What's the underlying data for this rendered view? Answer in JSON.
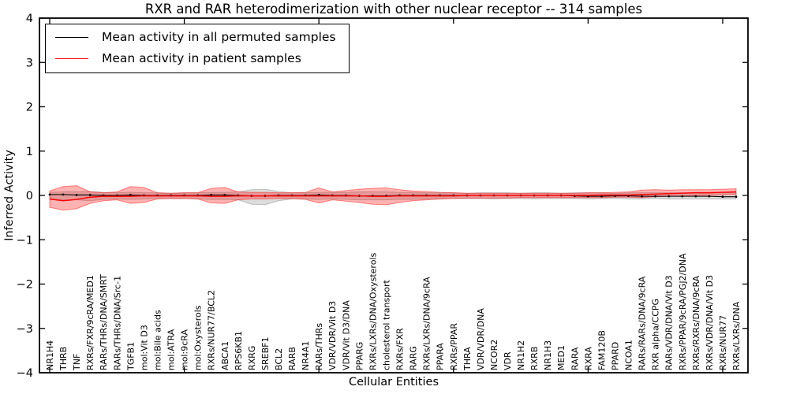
{
  "chart_data": {
    "type": "line",
    "title": "RXR and RAR heterodimerization with other nuclear receptor -- 314 samples",
    "xlabel": "Cellular Entities",
    "ylabel": "Inferred Activity",
    "ylim": [
      -4,
      4
    ],
    "yticks": [
      -4,
      -3,
      -2,
      -1,
      0,
      1,
      2,
      3,
      4
    ],
    "xtick_marks_every": 10,
    "grid": false,
    "legend_position": "upper left",
    "categories": [
      "NR1H4",
      "THRB",
      "TNF",
      "RXRs/FXR/9cRA/MED1",
      "RARs/THRs/DNA/SMRT",
      "RARs/THRs/DNA/Src-1",
      "TGFB1",
      "mol:Vit D3",
      "mol:Bile acids",
      "mol:ATRA",
      "mol:9cRA",
      "mol:Oxysterols",
      "RXRs/NUR77/BCL2",
      "ABCA1",
      "RPS6KB1",
      "RXRG",
      "SREBF1",
      "BCL2",
      "RARB",
      "NR4A1",
      "RARs/THRs",
      "VDR/VDR/Vit D3",
      "VDR/Vit D3/DNA",
      "PPARG",
      "RXRs/LXRs/DNA/Oxysterols",
      "cholesterol transport",
      "RXRs/FXR",
      "RARG",
      "RXRs/LXRs/DNA/9cRA",
      "PPARA",
      "RXRs/PPAR",
      "THRA",
      "VDR/VDR/DNA",
      "NCOR2",
      "VDR",
      "NR1H2",
      "RXRB",
      "NR1H3",
      "MED1",
      "RARA",
      "RXRA",
      "FAM120B",
      "PPARD",
      "NCOA1",
      "RARs/RARs/DNA/9cRA",
      "RXR alpha/CCPG",
      "RARs/VDR/DNA/Vit D3",
      "RXRs/PPAR/9cRA/PGJ2/DNA",
      "RXRs/RXRs/DNA/9cRA",
      "RXRs/VDR/DNA/Vit D3",
      "RXRs/NUR77",
      "RXRs/LXRs/DNA"
    ],
    "series": [
      {
        "name": "Mean activity in all permuted samples",
        "color": "#000000",
        "style": "solid with dot markers",
        "values": [
          0.02,
          0.02,
          0.01,
          0.01,
          0,
          0,
          0.01,
          0,
          0,
          0,
          0,
          0,
          0.01,
          0.01,
          0,
          -0.01,
          -0.01,
          0,
          0,
          0,
          0.01,
          0,
          0,
          -0.01,
          -0.01,
          -0.01,
          0,
          0,
          0,
          0,
          0,
          0,
          0,
          0,
          0,
          0,
          0,
          0,
          0,
          -0.01,
          -0.02,
          -0.02,
          -0.01,
          -0.01,
          -0.02,
          -0.02,
          -0.02,
          -0.02,
          -0.02,
          -0.02,
          -0.03,
          -0.03
        ]
      },
      {
        "name": "Mean activity in patient samples",
        "color": "#ff0000",
        "style": "solid",
        "values": [
          -0.08,
          -0.12,
          -0.09,
          -0.04,
          -0.02,
          -0.02,
          -0.02,
          -0.01,
          -0.01,
          -0.01,
          -0.01,
          -0.01,
          -0.02,
          -0.02,
          -0.01,
          -0.01,
          -0.01,
          -0.01,
          -0.01,
          -0.01,
          -0.01,
          -0.01,
          -0.01,
          -0.01,
          -0.02,
          -0.02,
          -0.01,
          -0.01,
          -0.01,
          -0.01,
          -0.01,
          0,
          0,
          0,
          0,
          0,
          0,
          0,
          0,
          0,
          0,
          0.01,
          0.01,
          0.01,
          0.02,
          0.03,
          0.04,
          0.05,
          0.06,
          0.06,
          0.07,
          0.08
        ]
      }
    ],
    "bands": [
      {
        "name": "permuted samples range",
        "color": "#808080",
        "alpha": 0.28,
        "upper": [
          0.07,
          0.08,
          0.08,
          0.09,
          0.07,
          0.06,
          0.07,
          0.06,
          0.06,
          0.05,
          0.06,
          0.06,
          0.07,
          0.07,
          0.08,
          0.13,
          0.14,
          0.09,
          0.06,
          0.06,
          0.07,
          0.07,
          0.07,
          0.08,
          0.08,
          0.08,
          0.07,
          0.07,
          0.06,
          0.06,
          0.06,
          0.05,
          0.06,
          0.06,
          0.06,
          0.05,
          0.06,
          0.06,
          0.05,
          0.06,
          0.06,
          0.06,
          0.05,
          0.06,
          0.06,
          0.06,
          0.06,
          0.06,
          0.06,
          0.06,
          0.06,
          0.06
        ],
        "lower": [
          -0.09,
          -0.1,
          -0.1,
          -0.12,
          -0.09,
          -0.08,
          -0.09,
          -0.08,
          -0.07,
          -0.07,
          -0.07,
          -0.08,
          -0.09,
          -0.09,
          -0.1,
          -0.2,
          -0.21,
          -0.12,
          -0.08,
          -0.08,
          -0.09,
          -0.08,
          -0.09,
          -0.1,
          -0.1,
          -0.1,
          -0.09,
          -0.09,
          -0.08,
          -0.08,
          -0.07,
          -0.07,
          -0.07,
          -0.08,
          -0.07,
          -0.07,
          -0.08,
          -0.07,
          -0.07,
          -0.07,
          -0.08,
          -0.07,
          -0.07,
          -0.08,
          -0.08,
          -0.07,
          -0.08,
          -0.08,
          -0.08,
          -0.08,
          -0.08,
          -0.08
        ]
      },
      {
        "name": "patient samples range",
        "color": "#ff0000",
        "alpha": 0.3,
        "upper": [
          0.1,
          0.2,
          0.22,
          0.08,
          0.06,
          0.08,
          0.2,
          0.18,
          0.06,
          0.05,
          0.06,
          0.06,
          0.16,
          0.18,
          0.08,
          0.07,
          0.07,
          0.06,
          0.06,
          0.07,
          0.17,
          0.08,
          0.11,
          0.14,
          0.16,
          0.17,
          0.13,
          0.1,
          0.09,
          0.07,
          0.06,
          0.05,
          0.05,
          0.05,
          0.05,
          0.05,
          0.05,
          0.05,
          0.05,
          0.05,
          0.06,
          0.06,
          0.07,
          0.08,
          0.12,
          0.13,
          0.12,
          0.13,
          0.13,
          0.13,
          0.14,
          0.15
        ],
        "lower": [
          -0.27,
          -0.33,
          -0.3,
          -0.18,
          -0.12,
          -0.1,
          -0.18,
          -0.16,
          -0.08,
          -0.07,
          -0.07,
          -0.08,
          -0.17,
          -0.18,
          -0.1,
          -0.08,
          -0.08,
          -0.07,
          -0.07,
          -0.09,
          -0.17,
          -0.1,
          -0.13,
          -0.16,
          -0.2,
          -0.21,
          -0.16,
          -0.12,
          -0.1,
          -0.08,
          -0.07,
          -0.06,
          -0.06,
          -0.06,
          -0.06,
          -0.05,
          -0.05,
          -0.05,
          -0.05,
          -0.05,
          -0.05,
          -0.05,
          -0.04,
          -0.04,
          -0.05,
          -0.03,
          -0.02,
          -0.01,
          0,
          0,
          0.01,
          0.02
        ]
      }
    ]
  }
}
